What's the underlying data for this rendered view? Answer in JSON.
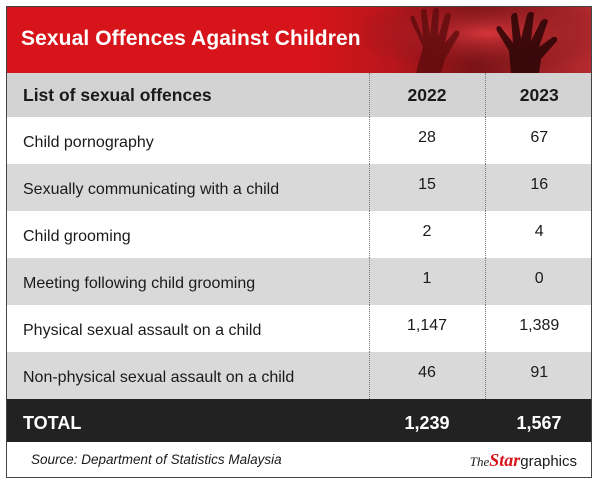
{
  "title": "Sexual Offences Against Children",
  "header": {
    "label": "List of sexual offences",
    "col1": "2022",
    "col2": "2023"
  },
  "rows": [
    {
      "label": "Child pornography",
      "y2022": "28",
      "y2023": "67"
    },
    {
      "label": "Sexually communicating with a child",
      "y2022": "15",
      "y2023": "16"
    },
    {
      "label": "Child grooming",
      "y2022": "2",
      "y2023": "4"
    },
    {
      "label": "Meeting following child grooming",
      "y2022": "1",
      "y2023": "0"
    },
    {
      "label": "Physical sexual assault on a child",
      "y2022": "1,147",
      "y2023": "1,389"
    },
    {
      "label": "Non-physical sexual assault on a child",
      "y2022": "46",
      "y2023": "91"
    }
  ],
  "total": {
    "label": "TOTAL",
    "y2022": "1,239",
    "y2023": "1,567"
  },
  "source": "Source: Department of Statistics Malaysia",
  "logo": {
    "the": "The",
    "star": "Star",
    "graphics": "graphics"
  },
  "colors": {
    "banner_red": "#d7141a",
    "header_gray": "#d3d3d3",
    "stripe_gray": "#d9d9d9",
    "total_bg": "#222222"
  },
  "chart_data": {
    "type": "table",
    "title": "Sexual Offences Against Children",
    "columns": [
      "List of sexual offences",
      "2022",
      "2023"
    ],
    "rows": [
      [
        "Child pornography",
        28,
        67
      ],
      [
        "Sexually communicating with a child",
        15,
        16
      ],
      [
        "Child grooming",
        2,
        4
      ],
      [
        "Meeting following child grooming",
        1,
        0
      ],
      [
        "Physical sexual assault on a child",
        1147,
        1389
      ],
      [
        "Non-physical sexual assault on a child",
        46,
        91
      ]
    ],
    "total": [
      "TOTAL",
      1239,
      1567
    ],
    "source": "Source: Department of Statistics Malaysia"
  }
}
